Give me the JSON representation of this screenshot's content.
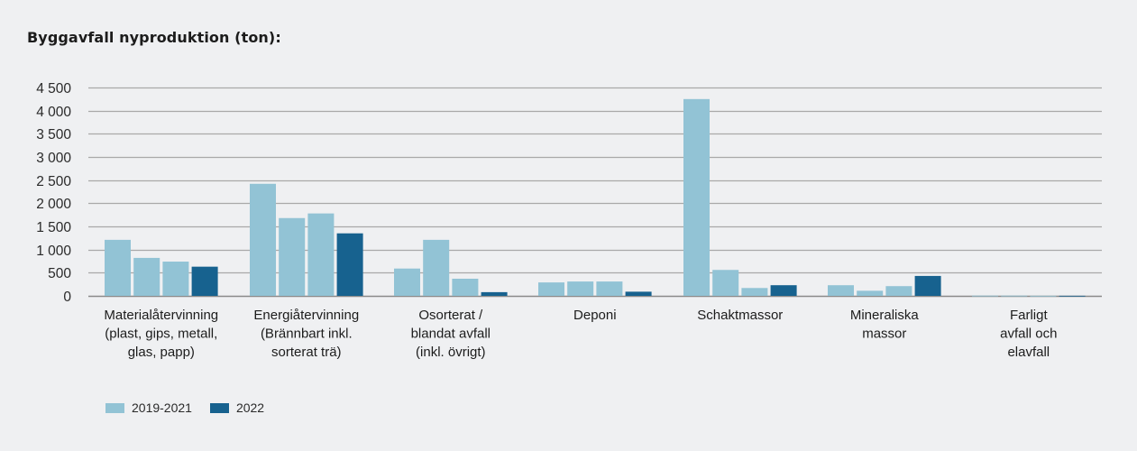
{
  "chart_data": {
    "type": "bar",
    "title": "Byggavfall nyproduktion (ton):",
    "xlabel": "",
    "ylabel": "",
    "ylim": [
      0,
      4500
    ],
    "yticks": [
      0,
      500,
      1000,
      1500,
      2000,
      2500,
      3000,
      3500,
      4000,
      4500
    ],
    "ytick_labels": [
      "0",
      "500",
      "1 000",
      "1 500",
      "2 000",
      "2 500",
      "3 000",
      "3 500",
      "4 000",
      "4 500"
    ],
    "grid": true,
    "legend_position": "bottom-left",
    "categories": [
      [
        "Materialåtervinning",
        "(plast, gips, metall,",
        "glas, papp)"
      ],
      [
        "Energiåtervinning",
        "(Brännbart inkl.",
        "sorterat trä)"
      ],
      [
        "Osorterat /",
        "blandat avfall",
        "(inkl. övrigt)"
      ],
      [
        "Deponi"
      ],
      [
        "Schaktmassor"
      ],
      [
        "Mineraliska",
        "massor"
      ],
      [
        "Farligt",
        "avfall och",
        "elavfall"
      ]
    ],
    "series": [
      {
        "name": "2019-2021",
        "color": "#92c3d5",
        "bars_per_category": 3,
        "values": [
          [
            1210,
            820,
            740
          ],
          [
            2420,
            1680,
            1780
          ],
          [
            590,
            1210,
            370
          ],
          [
            290,
            310,
            310
          ],
          [
            4250,
            560,
            170
          ],
          [
            230,
            110,
            210
          ],
          [
            5,
            5,
            2
          ]
        ]
      },
      {
        "name": "2022",
        "color": "#17628f",
        "values": [
          630,
          1350,
          80,
          90,
          230,
          430,
          2
        ]
      }
    ],
    "legend": [
      {
        "label": "2019-2021",
        "color": "#92c3d5"
      },
      {
        "label": "2022",
        "color": "#17628f"
      }
    ]
  }
}
